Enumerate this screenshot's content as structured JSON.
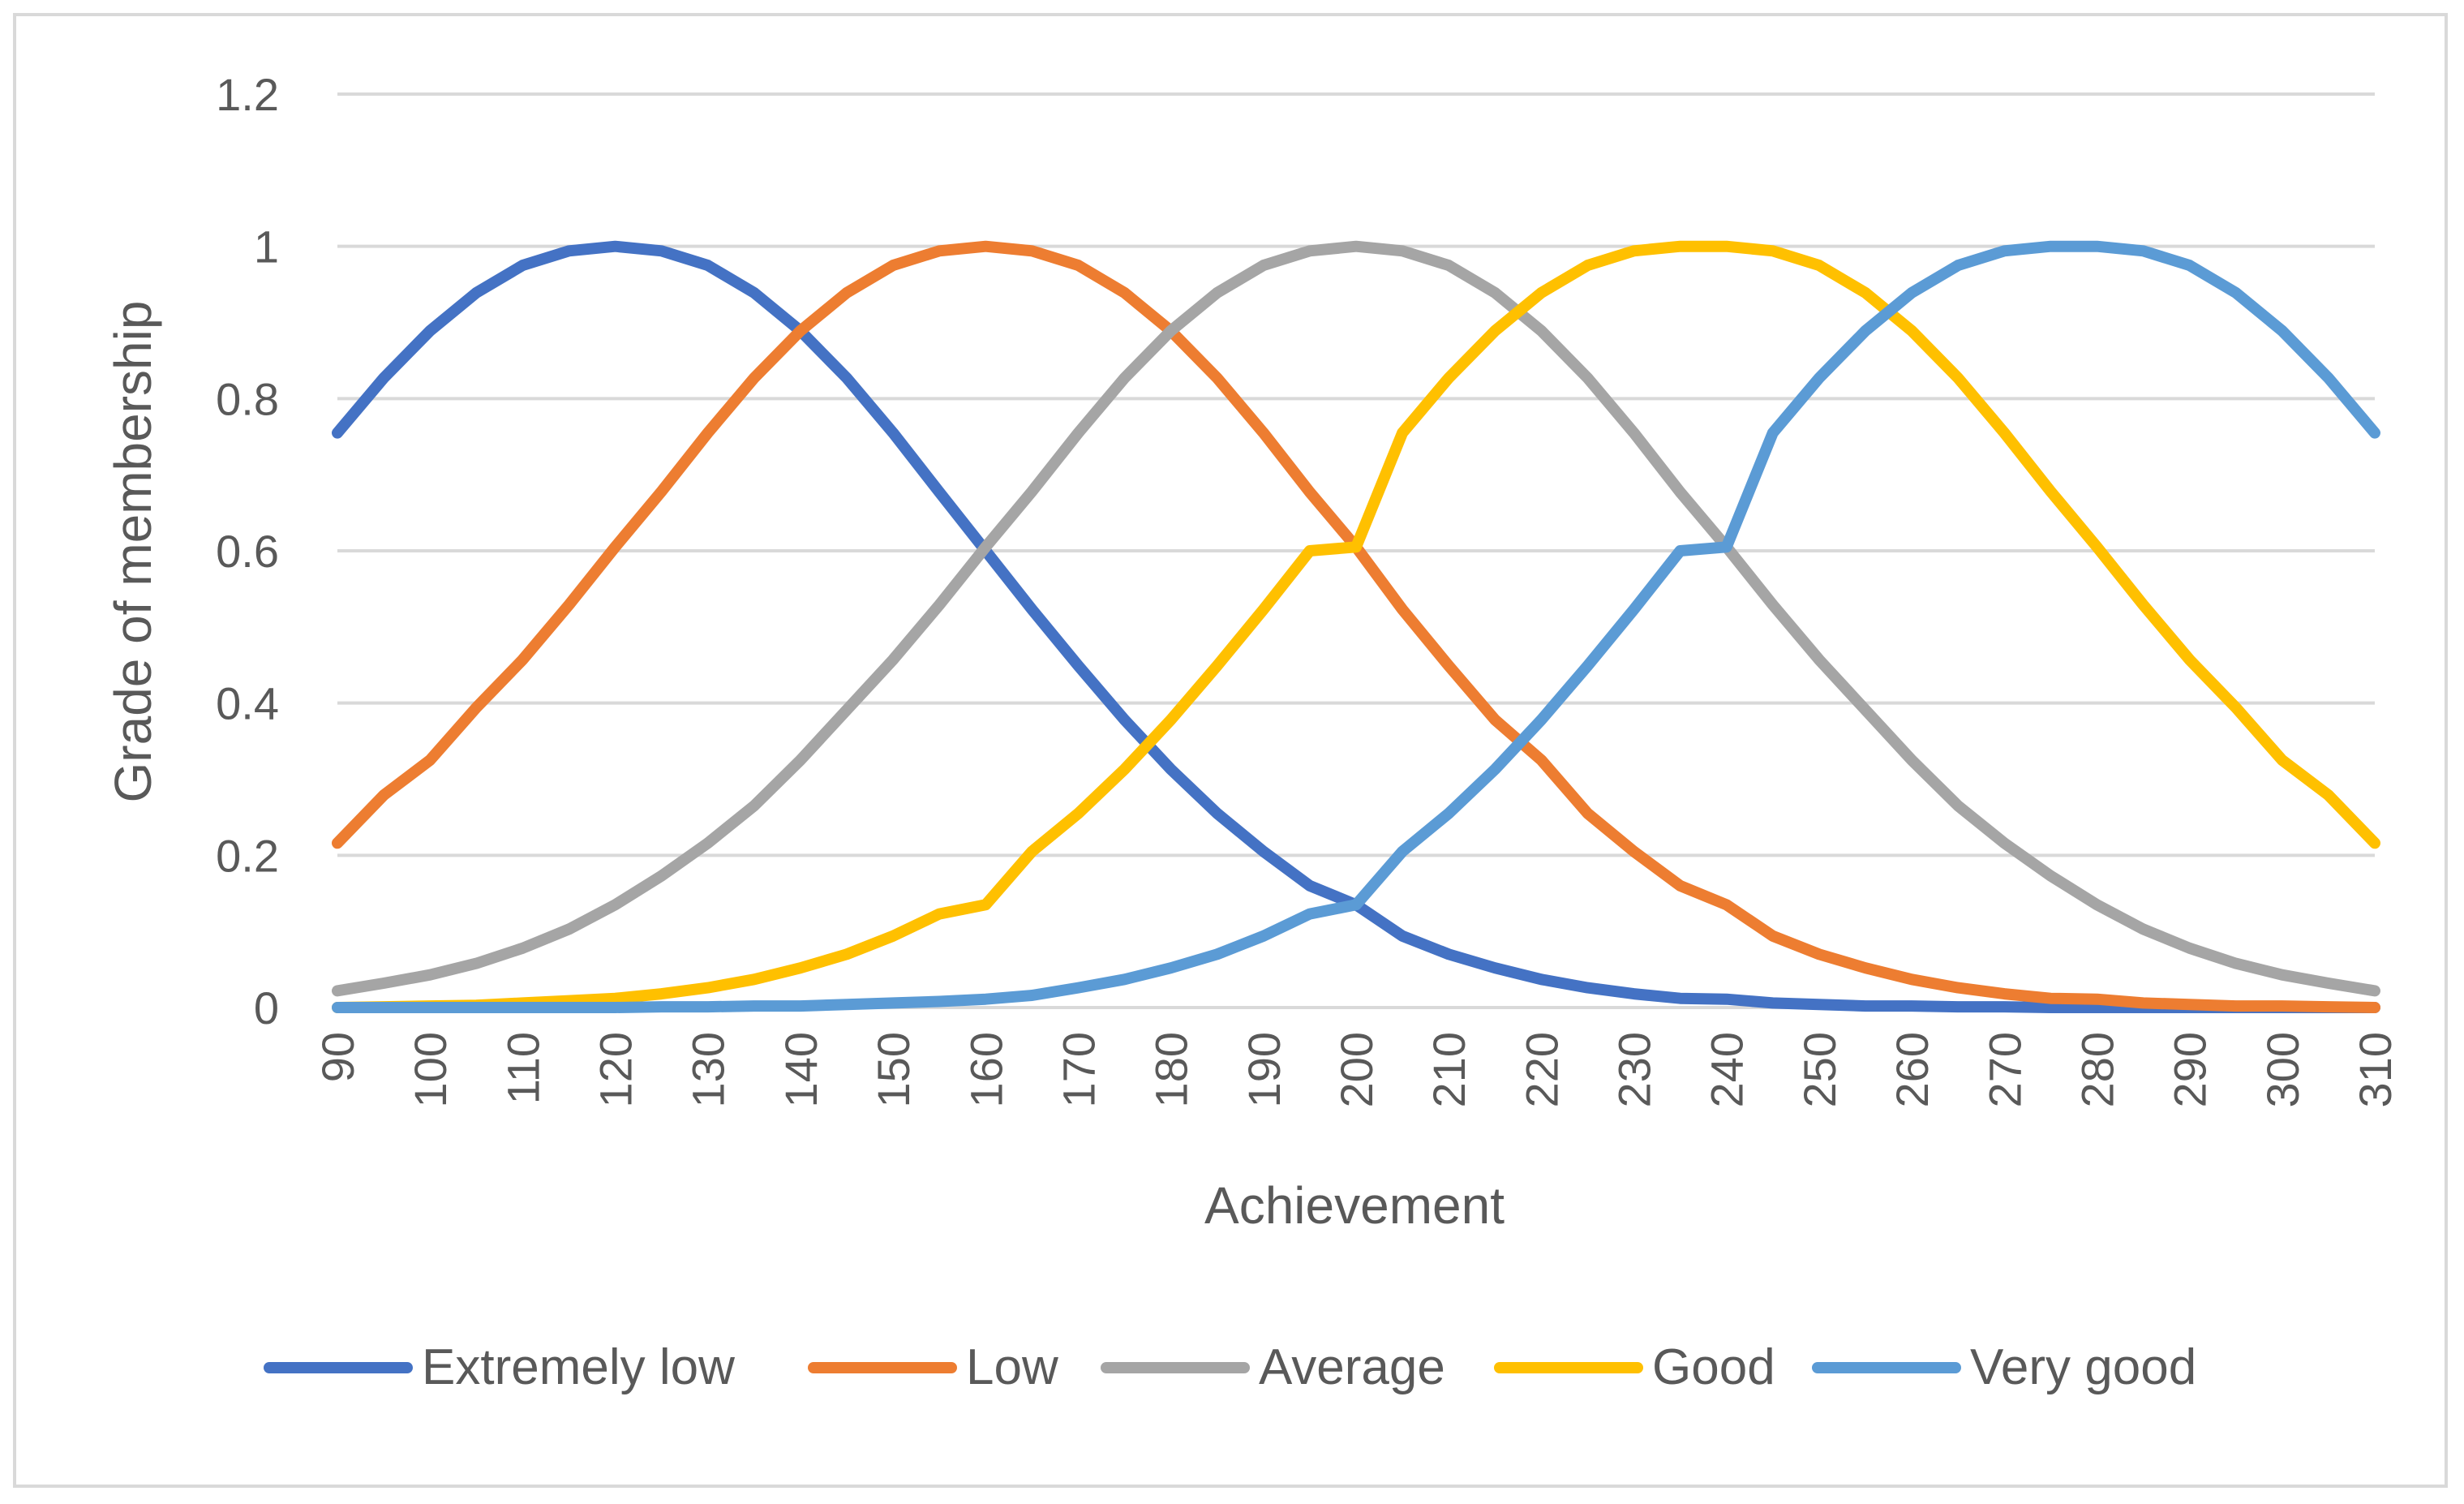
{
  "chart_data": {
    "type": "line",
    "title": "",
    "xlabel": "Achievement",
    "ylabel": "Grade of membership",
    "xlim": [
      90,
      310
    ],
    "ylim": [
      0,
      1.2
    ],
    "x_ticks": [
      "90",
      "100",
      "110",
      "120",
      "130",
      "140",
      "150",
      "160",
      "170",
      "180",
      "190",
      "200",
      "210",
      "220",
      "230",
      "240",
      "250",
      "260",
      "270",
      "280",
      "290",
      "300",
      "310"
    ],
    "y_ticks": [
      "0",
      "0.2",
      "0.4",
      "0.6",
      "0.8",
      "1",
      "1.2"
    ],
    "grid": true,
    "legend_position": "bottom",
    "x": [
      90,
      95,
      100,
      105,
      110,
      115,
      120,
      125,
      130,
      135,
      140,
      145,
      150,
      155,
      160,
      165,
      170,
      175,
      180,
      185,
      190,
      195,
      200,
      205,
      210,
      215,
      220,
      225,
      230,
      235,
      240,
      245,
      250,
      255,
      260,
      265,
      270,
      275,
      280,
      285,
      290,
      295,
      300,
      305,
      310
    ],
    "series": [
      {
        "name": "Extremely low",
        "color": "#4472c4",
        "values": [
          0.755,
          0.827,
          0.889,
          0.939,
          0.975,
          0.994,
          1.0,
          0.994,
          0.975,
          0.939,
          0.889,
          0.827,
          0.755,
          0.677,
          0.6,
          0.523,
          0.449,
          0.378,
          0.313,
          0.255,
          0.205,
          0.16,
          0.135,
          0.094,
          0.07,
          0.052,
          0.037,
          0.026,
          0.018,
          0.012,
          0.011,
          0.006,
          0.004,
          0.002,
          0.002,
          0.001,
          0.001,
          0.0,
          0.0,
          0.0,
          0.0,
          0.0,
          0.0,
          0.0,
          0.0
        ]
      },
      {
        "name": "Low",
        "color": "#ed7d31",
        "values": [
          0.216,
          0.279,
          0.325,
          0.394,
          0.457,
          0.529,
          0.605,
          0.678,
          0.755,
          0.827,
          0.889,
          0.939,
          0.975,
          0.994,
          1.0,
          0.994,
          0.975,
          0.939,
          0.889,
          0.827,
          0.755,
          0.677,
          0.605,
          0.523,
          0.449,
          0.378,
          0.325,
          0.255,
          0.205,
          0.16,
          0.135,
          0.094,
          0.07,
          0.052,
          0.037,
          0.026,
          0.018,
          0.012,
          0.011,
          0.006,
          0.004,
          0.002,
          0.002,
          0.001,
          0.0
        ]
      },
      {
        "name": "Average",
        "color": "#a5a5a5",
        "values": [
          0.022,
          0.032,
          0.043,
          0.058,
          0.078,
          0.103,
          0.135,
          0.173,
          0.216,
          0.265,
          0.325,
          0.391,
          0.457,
          0.529,
          0.605,
          0.678,
          0.755,
          0.827,
          0.889,
          0.939,
          0.975,
          0.994,
          1.0,
          0.994,
          0.975,
          0.939,
          0.889,
          0.827,
          0.755,
          0.677,
          0.605,
          0.529,
          0.457,
          0.391,
          0.325,
          0.265,
          0.216,
          0.173,
          0.135,
          0.103,
          0.078,
          0.058,
          0.043,
          0.032,
          0.022
        ]
      },
      {
        "name": "Good",
        "color": "#ffc000",
        "values": [
          0.0,
          0.001,
          0.002,
          0.003,
          0.006,
          0.009,
          0.012,
          0.018,
          0.026,
          0.037,
          0.052,
          0.07,
          0.094,
          0.123,
          0.135,
          0.205,
          0.255,
          0.313,
          0.378,
          0.449,
          0.523,
          0.6,
          0.605,
          0.755,
          0.827,
          0.889,
          0.939,
          0.975,
          0.994,
          1.0,
          1.0,
          0.994,
          0.975,
          0.939,
          0.889,
          0.827,
          0.755,
          0.678,
          0.605,
          0.529,
          0.457,
          0.394,
          0.325,
          0.279,
          0.216
        ]
      },
      {
        "name": "Very good",
        "color": "#5b9bd5",
        "values": [
          0.0,
          0.0,
          0.0,
          0.0,
          0.0,
          0.0,
          0.0,
          0.001,
          0.001,
          0.002,
          0.002,
          0.004,
          0.006,
          0.008,
          0.011,
          0.016,
          0.026,
          0.037,
          0.052,
          0.07,
          0.094,
          0.123,
          0.135,
          0.205,
          0.255,
          0.313,
          0.378,
          0.449,
          0.523,
          0.6,
          0.605,
          0.755,
          0.827,
          0.889,
          0.939,
          0.975,
          0.994,
          1.0,
          1.0,
          0.994,
          0.975,
          0.939,
          0.889,
          0.827,
          0.755
        ]
      }
    ]
  }
}
